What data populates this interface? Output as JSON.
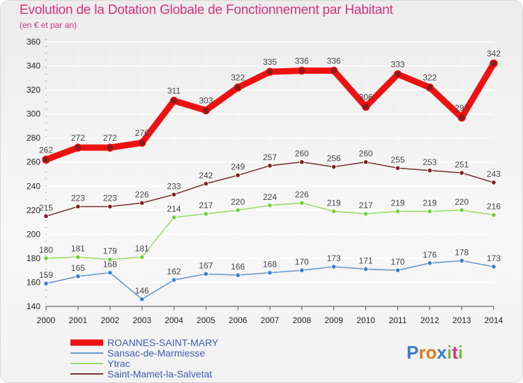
{
  "chart_data": {
    "type": "line",
    "title": "Evolution de la Dotation Globale de Fonctionnement par Habitant",
    "subtitle": "(en € et par an)",
    "xlabel": "",
    "ylabel": "",
    "ylim": [
      140,
      360
    ],
    "yticks": [
      140,
      160,
      180,
      200,
      220,
      240,
      260,
      280,
      300,
      320,
      340,
      360
    ],
    "grid": true,
    "categories": [
      "2000",
      "2001",
      "2002",
      "2003",
      "2004",
      "2005",
      "2006",
      "2007",
      "2008",
      "2009",
      "2010",
      "2011",
      "2012",
      "2013",
      "2014"
    ],
    "series": [
      {
        "name": "ROANNES-SAINT-MARY",
        "color": "#ee1111",
        "marker": "#8b1a1a",
        "bold": true,
        "values": [
          262,
          272,
          272,
          276,
          311,
          303,
          322,
          335,
          336,
          336,
          306,
          333,
          322,
          297,
          342
        ]
      },
      {
        "name": "Sansac-de-Marmiesse",
        "color": "#6699cc",
        "marker": "#3b7cc8",
        "bold": false,
        "values": [
          159,
          165,
          168,
          146,
          162,
          167,
          166,
          168,
          170,
          173,
          171,
          170,
          176,
          178,
          173
        ]
      },
      {
        "name": "Ytrac",
        "color": "#99dd66",
        "marker": "#77cc33",
        "bold": false,
        "values": [
          180,
          181,
          179,
          181,
          214,
          217,
          220,
          224,
          226,
          219,
          217,
          219,
          219,
          220,
          216
        ]
      },
      {
        "name": "Saint-Mamet-la-Salvetat",
        "color": "#7a3535",
        "marker": "#7a2020",
        "bold": false,
        "values": [
          215,
          223,
          223,
          226,
          233,
          242,
          249,
          257,
          260,
          256,
          260,
          255,
          253,
          251,
          243
        ]
      }
    ]
  },
  "logo": {
    "text": "Proxiti",
    "letters": [
      "P",
      "r",
      "o",
      "x",
      "i",
      "t",
      "i"
    ],
    "colors": [
      "#3b7cc8",
      "#e07a1f",
      "#e07a1f",
      "#3b7cc8",
      "#7ab83a",
      "#d3337a",
      "#7ab83a"
    ]
  }
}
